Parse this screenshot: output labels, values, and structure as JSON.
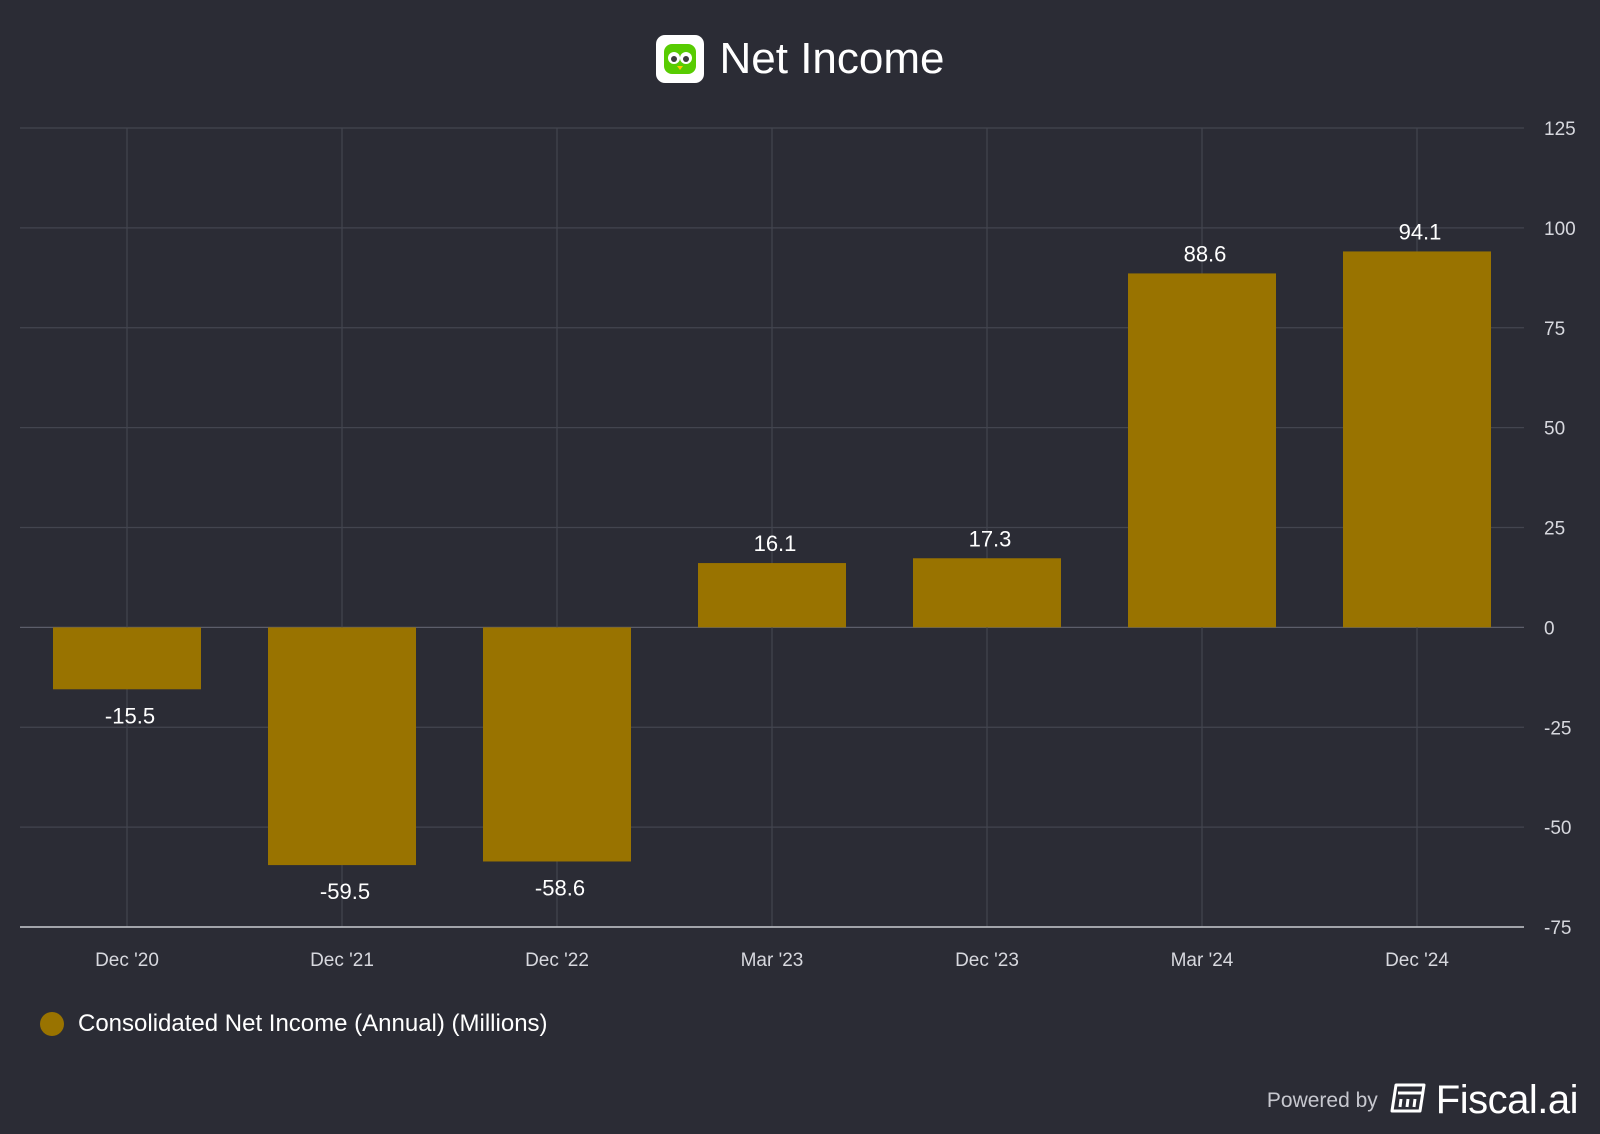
{
  "header": {
    "title": "Net Income",
    "logo_icon": "duolingo-owl-icon"
  },
  "chart_data": {
    "type": "bar",
    "categories": [
      "Dec '20",
      "Dec '21",
      "Dec '22",
      "Mar '23",
      "Dec '23",
      "Mar '24",
      "Dec '24"
    ],
    "series": [
      {
        "name": "Consolidated Net Income (Annual) (Millions)",
        "values": [
          -15.5,
          -59.5,
          -58.6,
          16.1,
          17.3,
          88.6,
          94.1
        ]
      }
    ],
    "data_labels": [
      "-15.5",
      "-59.5",
      "-58.6",
      "16.1",
      "17.3",
      "88.6",
      "94.1"
    ],
    "title": "Net Income",
    "ylim": [
      -75,
      125
    ],
    "yticks": [
      125,
      100,
      75,
      50,
      25,
      0,
      -25,
      -50,
      -75
    ],
    "y_axis_position": "right",
    "grid": true,
    "legend_position": "bottom-left",
    "bar_color": "#997300"
  },
  "legend": {
    "label": "Consolidated Net Income (Annual) (Millions)",
    "color": "#997300"
  },
  "footer": {
    "powered_by": "Powered by",
    "brand": "Fiscal.ai",
    "brand_icon": "fiscal-ai-logo-icon"
  }
}
